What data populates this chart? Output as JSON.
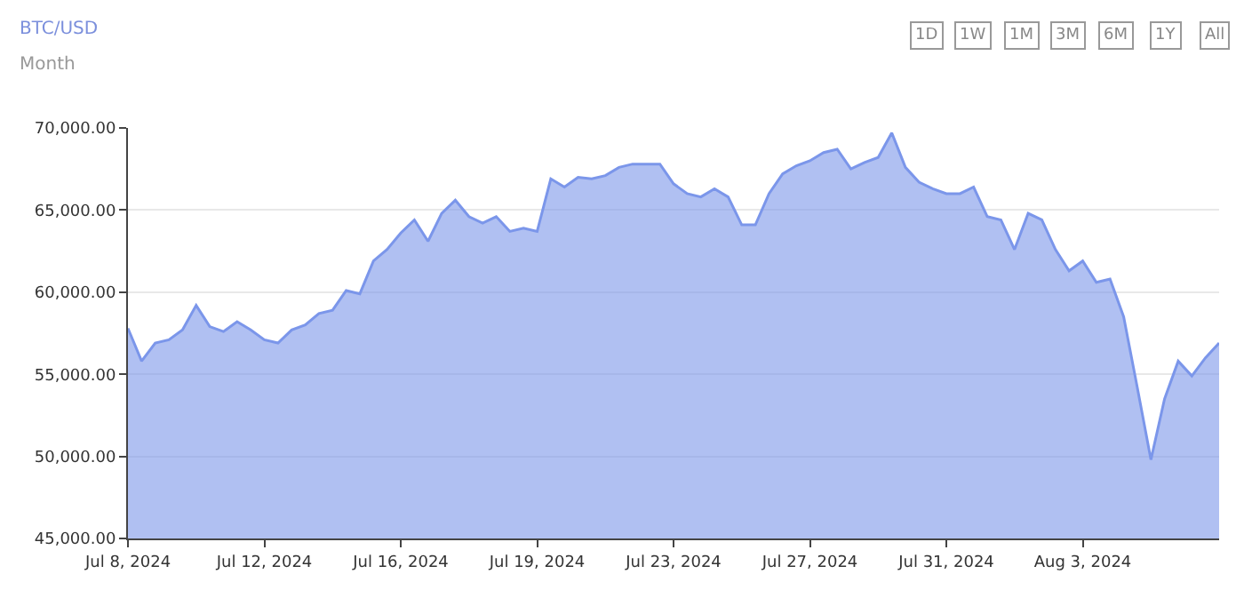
{
  "chart_data": {
    "type": "area",
    "title": "BTC/USD",
    "subtitle": "Month",
    "annotations": [
      "1D",
      "1W",
      "1M",
      "3M",
      "6M",
      "1Y",
      "All"
    ],
    "categories": [
      "Jul 8, 2024",
      null,
      null,
      null,
      null,
      null,
      null,
      null,
      null,
      null,
      "Jul 12, 2024",
      null,
      null,
      null,
      null,
      null,
      null,
      null,
      null,
      null,
      "Jul 16, 2024",
      null,
      null,
      null,
      null,
      null,
      null,
      null,
      null,
      null,
      "Jul 19, 2024",
      null,
      null,
      null,
      null,
      null,
      null,
      null,
      null,
      null,
      "Jul 23, 2024",
      null,
      null,
      null,
      null,
      null,
      null,
      null,
      null,
      null,
      "Jul 27, 2024",
      null,
      null,
      null,
      null,
      null,
      null,
      null,
      null,
      null,
      "Jul 31, 2024",
      null,
      null,
      null,
      null,
      null,
      null,
      null,
      null,
      null,
      "Aug 3, 2024",
      null,
      null,
      null,
      null,
      null,
      null,
      null,
      null,
      null,
      null
    ],
    "ylim": [
      45000,
      70000
    ],
    "yticks": [
      {
        "value": 45000,
        "label": "45,000.00"
      },
      {
        "value": 50000,
        "label": "50,000.00"
      },
      {
        "value": 55000,
        "label": "55,000.00"
      },
      {
        "value": 60000,
        "label": "60,000.00"
      },
      {
        "value": 65000,
        "label": "65,000.00"
      },
      {
        "value": 70000,
        "label": "70,000.00"
      }
    ],
    "grid": "y",
    "marker": "none",
    "line_style": "solid",
    "series": [
      {
        "color": "#7b96ea",
        "values": [
          57800,
          55800,
          56900,
          57100,
          57700,
          59200,
          57900,
          57600,
          58200,
          57700,
          57100,
          56900,
          57700,
          58000,
          58700,
          58900,
          60100,
          59900,
          61900,
          62600,
          63600,
          64400,
          63100,
          64800,
          65600,
          64600,
          64200,
          64600,
          63700,
          63900,
          63700,
          66900,
          66400,
          67000,
          66900,
          67100,
          67600,
          67800,
          67800,
          67800,
          66600,
          66000,
          65800,
          66300,
          65800,
          64100,
          64100,
          66000,
          67200,
          67700,
          68000,
          68500,
          68700,
          67500,
          67900,
          68200,
          69700,
          67600,
          66700,
          66300,
          66000,
          66000,
          66400,
          64600,
          64400,
          62600,
          64800,
          64400,
          62600,
          61300,
          61900,
          60600,
          60800,
          58500,
          54200,
          49800,
          53500,
          55800,
          54900,
          56000,
          56900
        ]
      }
    ]
  }
}
